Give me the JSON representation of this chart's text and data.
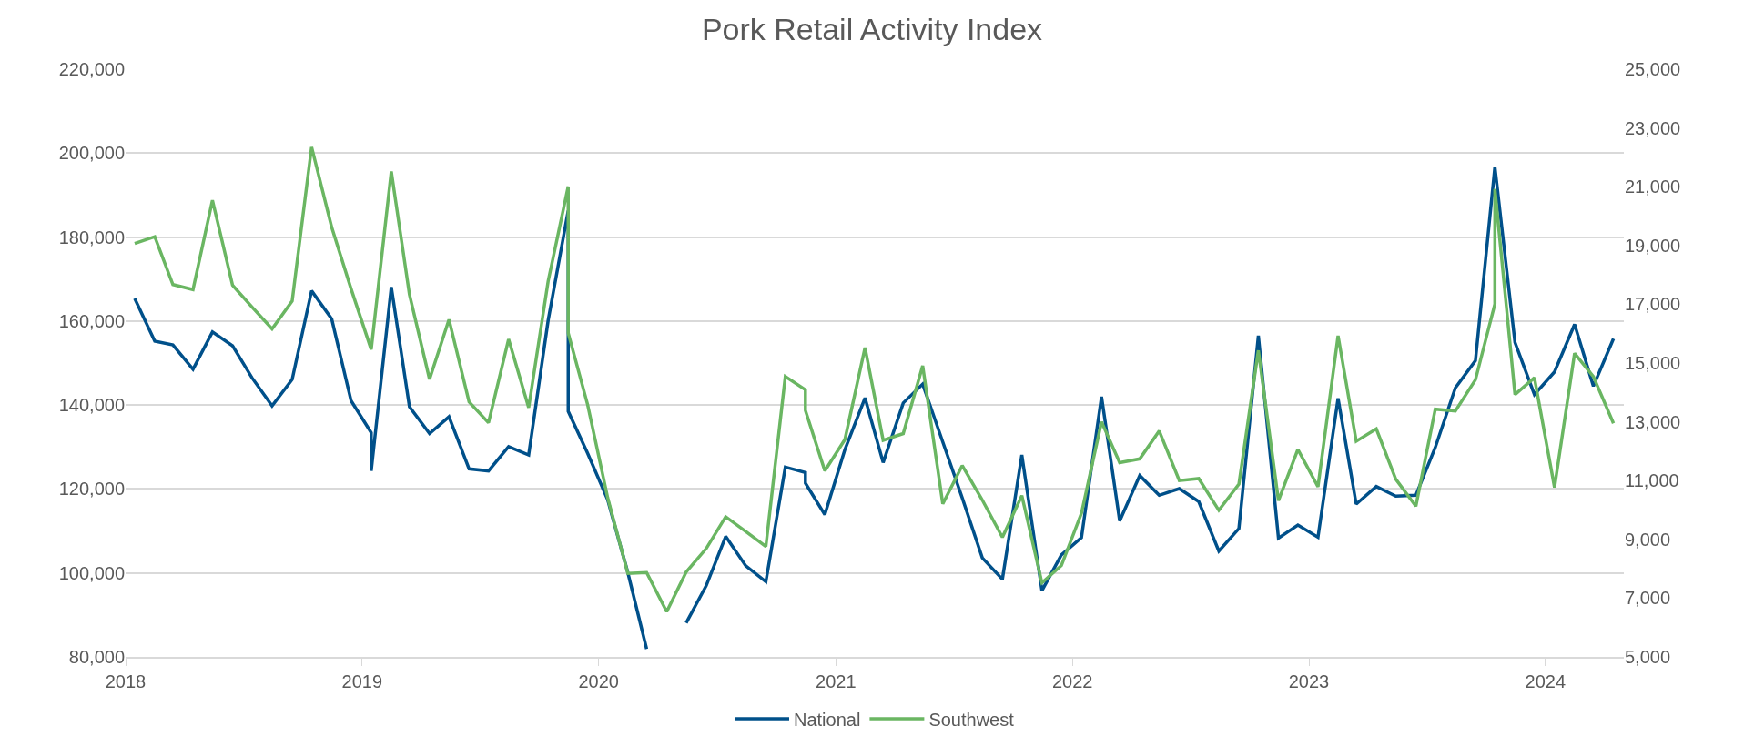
{
  "chart_data": {
    "type": "line",
    "title": "Pork Retail Activity Index",
    "legend": "bottom",
    "grid": "y",
    "marker": "none",
    "line_style": "solid",
    "xlim": [
      "2018-01-01",
      "2024-05-01"
    ],
    "xticks": [
      "2018",
      "2019",
      "2020",
      "2021",
      "2022",
      "2023",
      "2024"
    ],
    "ylim": [
      80000,
      220000
    ],
    "yticks": [
      {
        "value": 80000,
        "label": "80,000"
      },
      {
        "value": 100000,
        "label": "100,000"
      },
      {
        "value": 120000,
        "label": "120,000"
      },
      {
        "value": 140000,
        "label": "140,000"
      },
      {
        "value": 160000,
        "label": "160,000"
      },
      {
        "value": 180000,
        "label": "180,000"
      },
      {
        "value": 200000,
        "label": "200,000"
      },
      {
        "value": 220000,
        "label": "220,000"
      }
    ],
    "y2lim": [
      5000,
      25000
    ],
    "y2ticks": [
      {
        "value": 5000,
        "label": "5,000"
      },
      {
        "value": 7000,
        "label": "7,000"
      },
      {
        "value": 9000,
        "label": "9,000"
      },
      {
        "value": 11000,
        "label": "11,000"
      },
      {
        "value": 13000,
        "label": "13,000"
      },
      {
        "value": 15000,
        "label": "15,000"
      },
      {
        "value": 17000,
        "label": "17,000"
      },
      {
        "value": 19000,
        "label": "19,000"
      },
      {
        "value": 21000,
        "label": "21,000"
      },
      {
        "value": 23000,
        "label": "23,000"
      },
      {
        "value": 25000,
        "label": "25,000"
      }
    ],
    "series": [
      {
        "name": "National",
        "color": "#00508a",
        "x": [
          "2018-01-15",
          "2018-02-15",
          "2018-03-15",
          "2018-04-15",
          "2018-05-15",
          "2018-06-15",
          "2018-07-15",
          "2018-08-15",
          "2018-09-15",
          "2018-10-15",
          "2018-11-15",
          "2018-12-15",
          "2019-01-15",
          "2019-01-15",
          "2019-02-15",
          "2019-03-15",
          "2019-04-15",
          "2019-05-15",
          "2019-06-15",
          "2019-07-15",
          "2019-08-15",
          "2019-09-15",
          "2019-10-15",
          "2019-11-15",
          "2019-11-15",
          "2019-12-15",
          "2020-01-15",
          "2020-02-15",
          "2020-03-15",
          "2020-04-15",
          "2020-05-15",
          "2020-06-15",
          "2020-07-15",
          "2020-08-15",
          "2020-09-15",
          "2020-10-15",
          "2020-11-15",
          "2020-11-15",
          "2020-12-15",
          "2021-01-15",
          "2021-02-15",
          "2021-03-15",
          "2021-04-15",
          "2021-05-15",
          "2021-06-15",
          "2021-07-15",
          "2021-08-15",
          "2021-09-15",
          "2021-10-15",
          "2021-11-15",
          "2021-12-15",
          "2022-01-15",
          "2022-02-15",
          "2022-03-15",
          "2022-04-15",
          "2022-05-15",
          "2022-06-15",
          "2022-07-15",
          "2022-08-15",
          "2022-09-15",
          "2022-10-15",
          "2022-11-15",
          "2022-12-15",
          "2023-01-15",
          "2023-02-15",
          "2023-03-15",
          "2023-04-15",
          "2023-05-15",
          "2023-06-15",
          "2023-07-15",
          "2023-08-15",
          "2023-09-15",
          "2023-10-15",
          "2023-11-15",
          "2023-12-15",
          "2024-01-15",
          "2024-02-15",
          "2024-03-15",
          "2024-04-15"
        ],
        "values": [
          165400,
          155200,
          154300,
          148500,
          157400,
          154100,
          146500,
          139800,
          146100,
          167200,
          160500,
          141000,
          133400,
          124300,
          168100,
          139600,
          133200,
          137200,
          124800,
          124300,
          130100,
          128100,
          160100,
          186300,
          138500,
          128500,
          117400,
          100100,
          81900,
          null,
          88100,
          97000,
          108700,
          101700,
          97900,
          125200,
          123900,
          121400,
          113900,
          129400,
          141700,
          126300,
          140500,
          145000,
          131200,
          117900,
          103600,
          98500,
          128100,
          95800,
          104300,
          108400,
          142000,
          112400,
          123200,
          118500,
          120100,
          117000,
          105200,
          110600,
          156500,
          108300,
          111400,
          108500,
          141600,
          116400,
          120600,
          118300,
          118500,
          129900,
          144100,
          150600,
          196700,
          154900,
          142500,
          147900,
          159200,
          144500,
          155800
        ]
      },
      {
        "name": "Southwest",
        "color": "#6ab662",
        "axis": "y2",
        "x": [
          "2018-01-15",
          "2018-02-15",
          "2018-03-15",
          "2018-04-15",
          "2018-05-15",
          "2018-06-15",
          "2018-07-15",
          "2018-08-15",
          "2018-09-15",
          "2018-10-15",
          "2018-11-15",
          "2018-12-15",
          "2019-01-15",
          "2019-02-15",
          "2019-03-15",
          "2019-04-15",
          "2019-05-15",
          "2019-06-15",
          "2019-07-15",
          "2019-08-15",
          "2019-09-15",
          "2019-10-15",
          "2019-11-15",
          "2019-11-15",
          "2019-12-15",
          "2020-01-15",
          "2020-02-15",
          "2020-03-15",
          "2020-04-15",
          "2020-05-15",
          "2020-06-15",
          "2020-07-15",
          "2020-08-15",
          "2020-09-15",
          "2020-10-15",
          "2020-11-15",
          "2020-11-15",
          "2020-12-15",
          "2021-01-15",
          "2021-02-15",
          "2021-03-15",
          "2021-04-15",
          "2021-05-15",
          "2021-06-15",
          "2021-07-15",
          "2021-08-15",
          "2021-09-15",
          "2021-10-15",
          "2021-11-15",
          "2021-12-15",
          "2022-01-15",
          "2022-02-15",
          "2022-03-15",
          "2022-04-15",
          "2022-05-15",
          "2022-06-15",
          "2022-07-15",
          "2022-08-15",
          "2022-09-15",
          "2022-10-15",
          "2022-11-15",
          "2022-12-15",
          "2023-01-15",
          "2023-02-15",
          "2023-03-15",
          "2023-04-15",
          "2023-05-15",
          "2023-06-15",
          "2023-07-15",
          "2023-08-15",
          "2023-09-15",
          "2023-10-15",
          "2023-10-15",
          "2023-11-15",
          "2023-12-15",
          "2024-01-15",
          "2024-02-15",
          "2024-03-15",
          "2024-04-15"
        ],
        "values": [
          19070,
          19300,
          17670,
          17500,
          20540,
          17650,
          16910,
          16160,
          17110,
          22350,
          19620,
          17520,
          15460,
          21520,
          17330,
          14450,
          16480,
          13680,
          12970,
          15810,
          13480,
          17780,
          21010,
          16020,
          13580,
          10410,
          7840,
          7870,
          6540,
          7890,
          8690,
          9770,
          9270,
          8760,
          14540,
          14090,
          13390,
          11330,
          12400,
          15520,
          12370,
          12600,
          14910,
          10210,
          11510,
          10340,
          9070,
          10490,
          7520,
          8110,
          9890,
          13000,
          11610,
          11740,
          12690,
          11000,
          11070,
          9990,
          10880,
          15430,
          10320,
          12060,
          10790,
          15930,
          12340,
          12760,
          11050,
          10130,
          13430,
          13370,
          14430,
          17010,
          20920,
          13930,
          14500,
          10770,
          15330,
          14540,
          12950
        ]
      }
    ]
  }
}
